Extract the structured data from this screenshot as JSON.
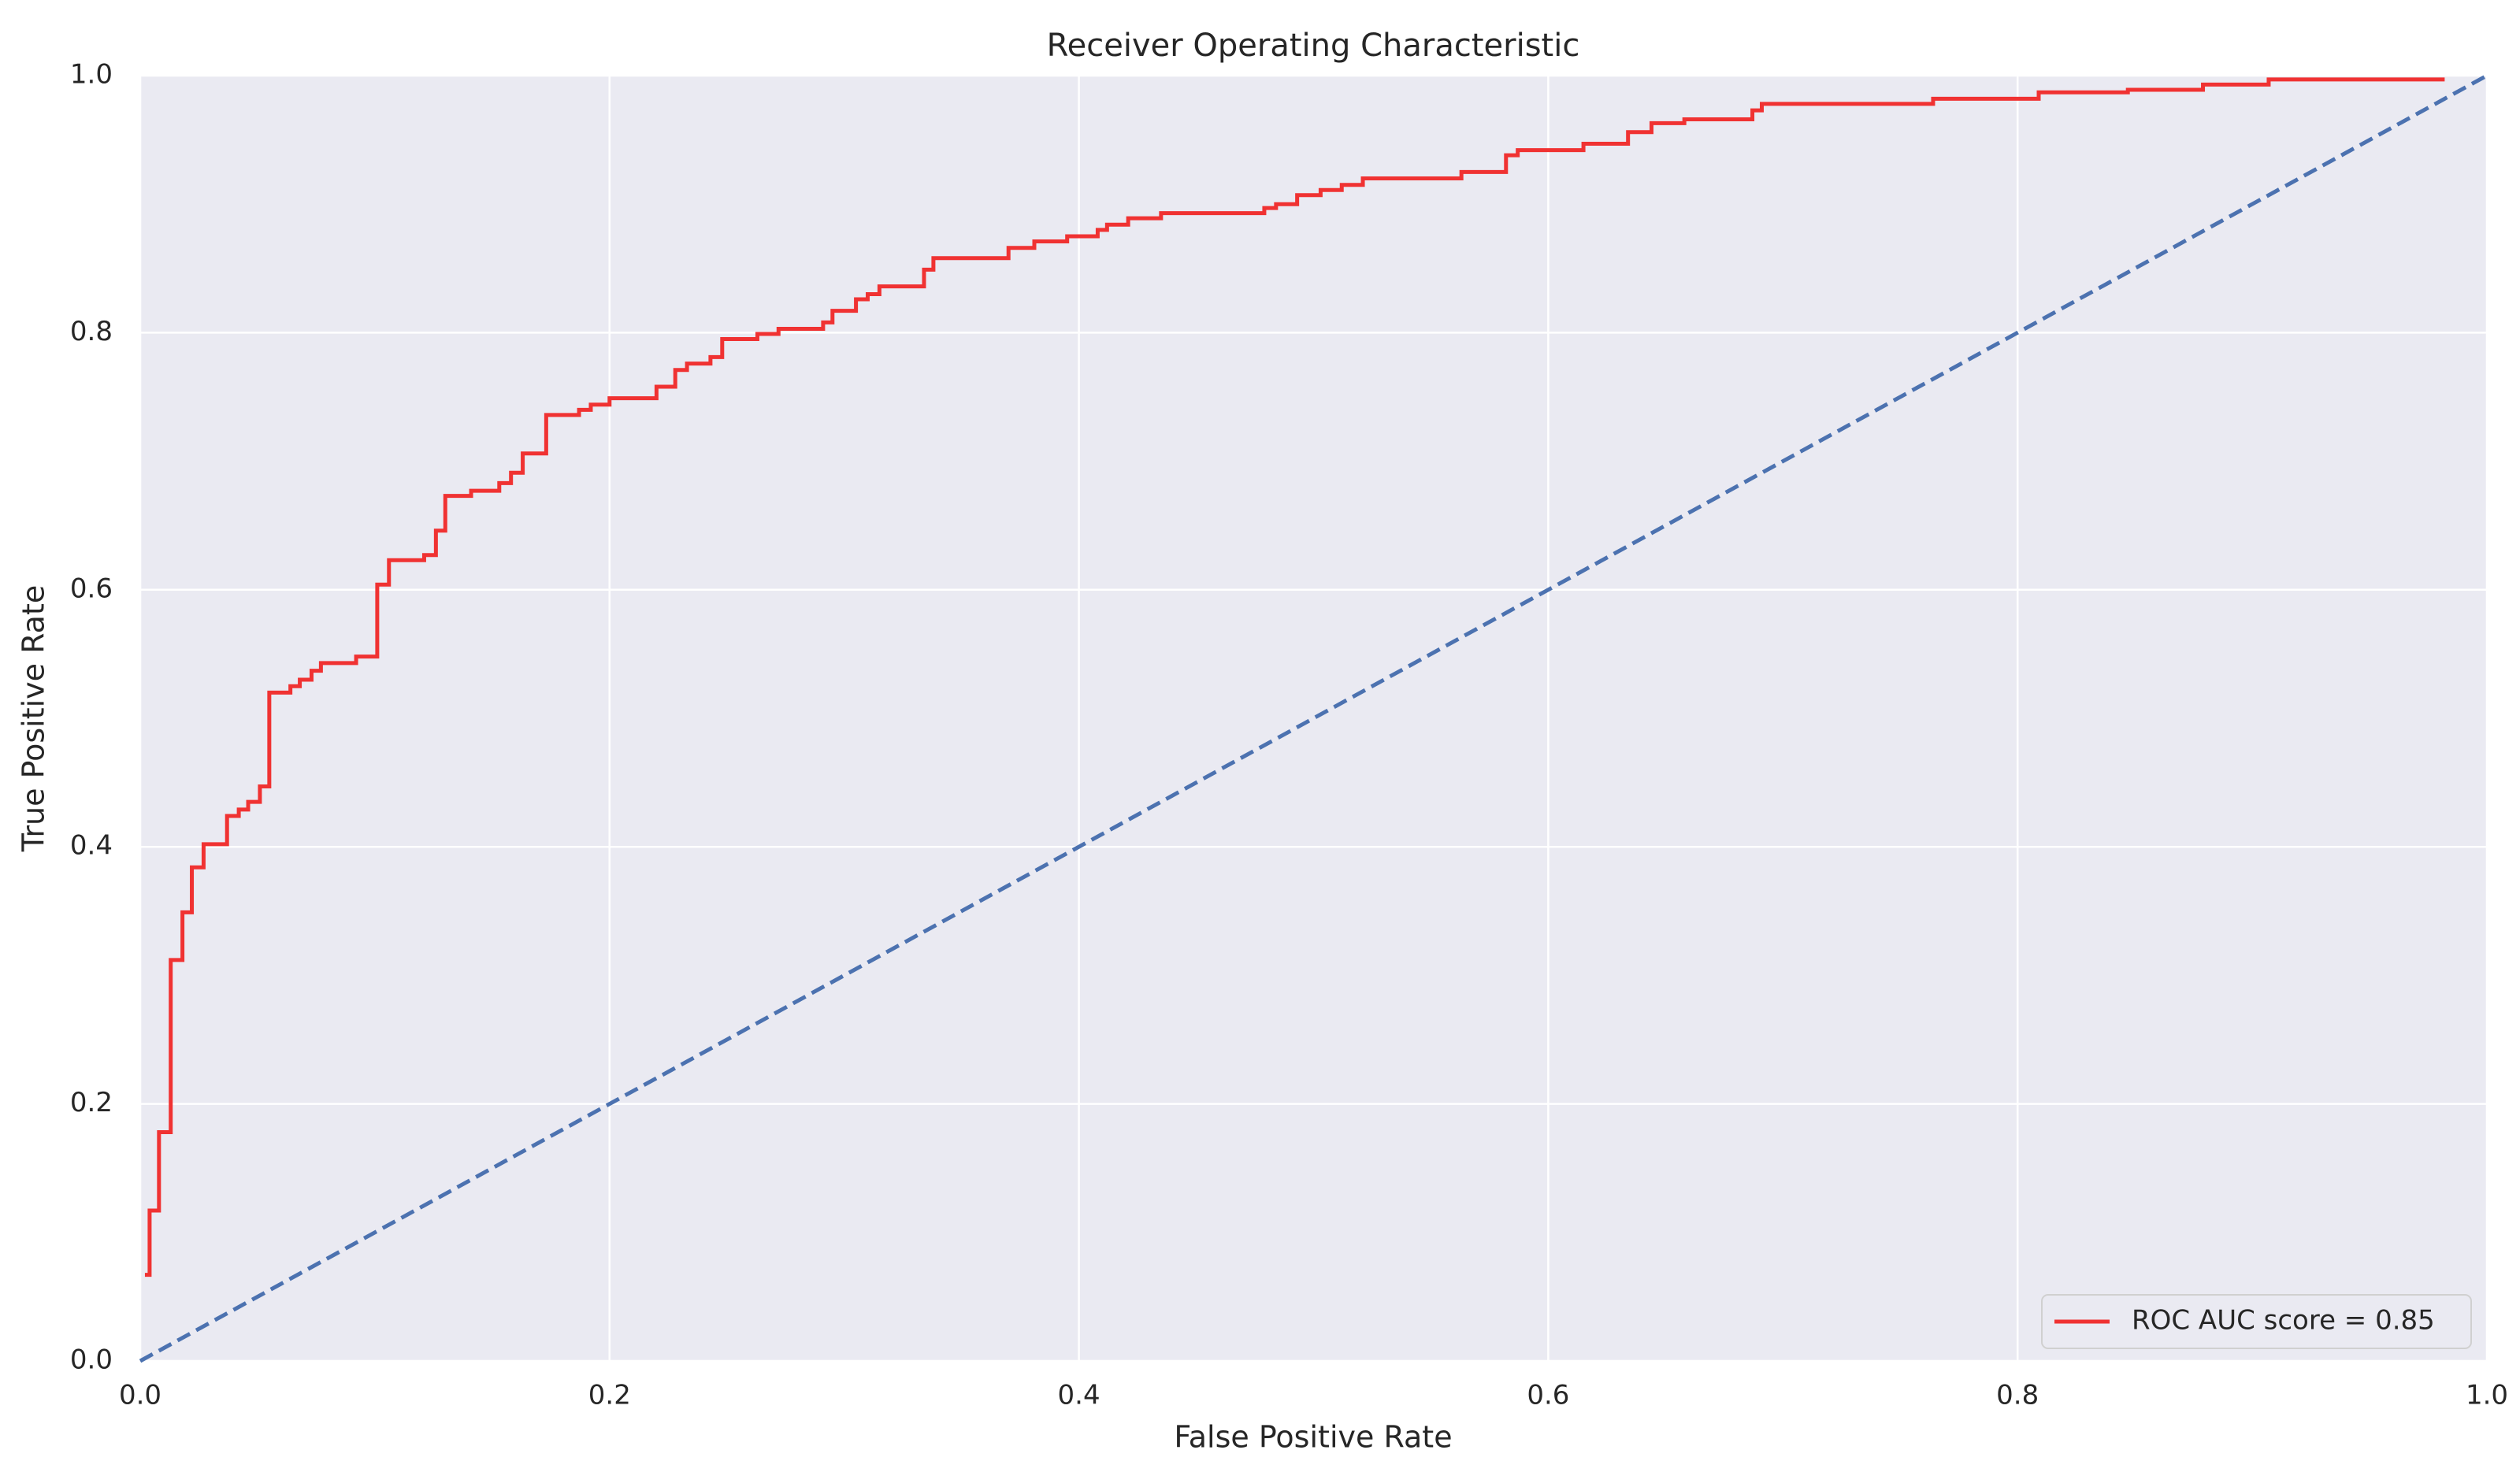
{
  "chart_data": {
    "type": "line",
    "title": "Receiver Operating Characteristic",
    "xlabel": "False Positive Rate",
    "ylabel": "True Positive Rate",
    "xlim": [
      0,
      1
    ],
    "ylim": [
      0,
      1
    ],
    "xticks": [
      {
        "value": 0,
        "label": "0.0"
      },
      0.2,
      0.4,
      0.6,
      0.8,
      {
        "value": 1,
        "label": "1.0"
      }
    ],
    "yticks": [
      {
        "value": 0,
        "label": "0.0"
      },
      0.2,
      0.4,
      0.6,
      0.8,
      {
        "value": 1,
        "label": "1.0"
      }
    ],
    "grid": true,
    "legend": "lower right",
    "series": [
      {
        "name": "ROC AUC score = 0.85",
        "color": "#f03232",
        "linestyle": "solid",
        "x": [
          0.002,
          0.004,
          0.004,
          0.008,
          0.008,
          0.013,
          0.013,
          0.018,
          0.018,
          0.022,
          0.022,
          0.027,
          0.027,
          0.037,
          0.037,
          0.042,
          0.042,
          0.046,
          0.046,
          0.051,
          0.051,
          0.055,
          0.055,
          0.064,
          0.064,
          0.068,
          0.068,
          0.073,
          0.073,
          0.077,
          0.077,
          0.092,
          0.092,
          0.101,
          0.101,
          0.106,
          0.106,
          0.121,
          0.121,
          0.126,
          0.126,
          0.13,
          0.13,
          0.141,
          0.141,
          0.153,
          0.153,
          0.158,
          0.158,
          0.163,
          0.163,
          0.173,
          0.173,
          0.187,
          0.187,
          0.192,
          0.192,
          0.2,
          0.2,
          0.22,
          0.22,
          0.228,
          0.228,
          0.233,
          0.233,
          0.243,
          0.243,
          0.248,
          0.248,
          0.263,
          0.263,
          0.272,
          0.272,
          0.291,
          0.291,
          0.295,
          0.295,
          0.305,
          0.305,
          0.31,
          0.31,
          0.315,
          0.315,
          0.334,
          0.334,
          0.338,
          0.338,
          0.37,
          0.37,
          0.381,
          0.381,
          0.395,
          0.395,
          0.408,
          0.408,
          0.412,
          0.412,
          0.421,
          0.421,
          0.435,
          0.435,
          0.479,
          0.479,
          0.484,
          0.484,
          0.493,
          0.493,
          0.503,
          0.503,
          0.512,
          0.512,
          0.521,
          0.521,
          0.563,
          0.563,
          0.582,
          0.582,
          0.587,
          0.587,
          0.615,
          0.615,
          0.634,
          0.634,
          0.644,
          0.644,
          0.658,
          0.658,
          0.687,
          0.687,
          0.691,
          0.691,
          0.764,
          0.764,
          0.809,
          0.809,
          0.847,
          0.847,
          0.879,
          0.879,
          0.907,
          0.907,
          0.982
        ],
        "values": [
          0.067,
          0.067,
          0.117,
          0.117,
          0.178,
          0.178,
          0.312,
          0.312,
          0.349,
          0.349,
          0.384,
          0.384,
          0.402,
          0.402,
          0.424,
          0.424,
          0.429,
          0.429,
          0.435,
          0.435,
          0.447,
          0.447,
          0.52,
          0.52,
          0.525,
          0.525,
          0.53,
          0.53,
          0.537,
          0.537,
          0.543,
          0.543,
          0.548,
          0.548,
          0.604,
          0.604,
          0.623,
          0.623,
          0.627,
          0.627,
          0.646,
          0.646,
          0.673,
          0.673,
          0.677,
          0.677,
          0.683,
          0.683,
          0.691,
          0.691,
          0.706,
          0.706,
          0.736,
          0.736,
          0.74,
          0.74,
          0.744,
          0.744,
          0.749,
          0.749,
          0.758,
          0.758,
          0.771,
          0.771,
          0.776,
          0.776,
          0.781,
          0.781,
          0.795,
          0.795,
          0.799,
          0.799,
          0.803,
          0.803,
          0.808,
          0.808,
          0.817,
          0.817,
          0.826,
          0.826,
          0.83,
          0.83,
          0.836,
          0.836,
          0.849,
          0.849,
          0.858,
          0.858,
          0.866,
          0.866,
          0.871,
          0.871,
          0.875,
          0.875,
          0.88,
          0.88,
          0.884,
          0.884,
          0.889,
          0.889,
          0.893,
          0.893,
          0.897,
          0.897,
          0.9,
          0.9,
          0.907,
          0.907,
          0.911,
          0.911,
          0.915,
          0.915,
          0.92,
          0.92,
          0.925,
          0.925,
          0.938,
          0.938,
          0.942,
          0.942,
          0.947,
          0.947,
          0.956,
          0.956,
          0.963,
          0.963,
          0.966,
          0.966,
          0.973,
          0.973,
          0.978,
          0.978,
          0.982,
          0.982,
          0.987,
          0.987,
          0.989,
          0.989,
          0.993,
          0.993,
          0.997,
          0.997
        ]
      },
      {
        "color": "#4c72b0",
        "linestyle": "dashed",
        "x": [
          0,
          1
        ],
        "values": [
          0,
          1
        ]
      }
    ]
  }
}
